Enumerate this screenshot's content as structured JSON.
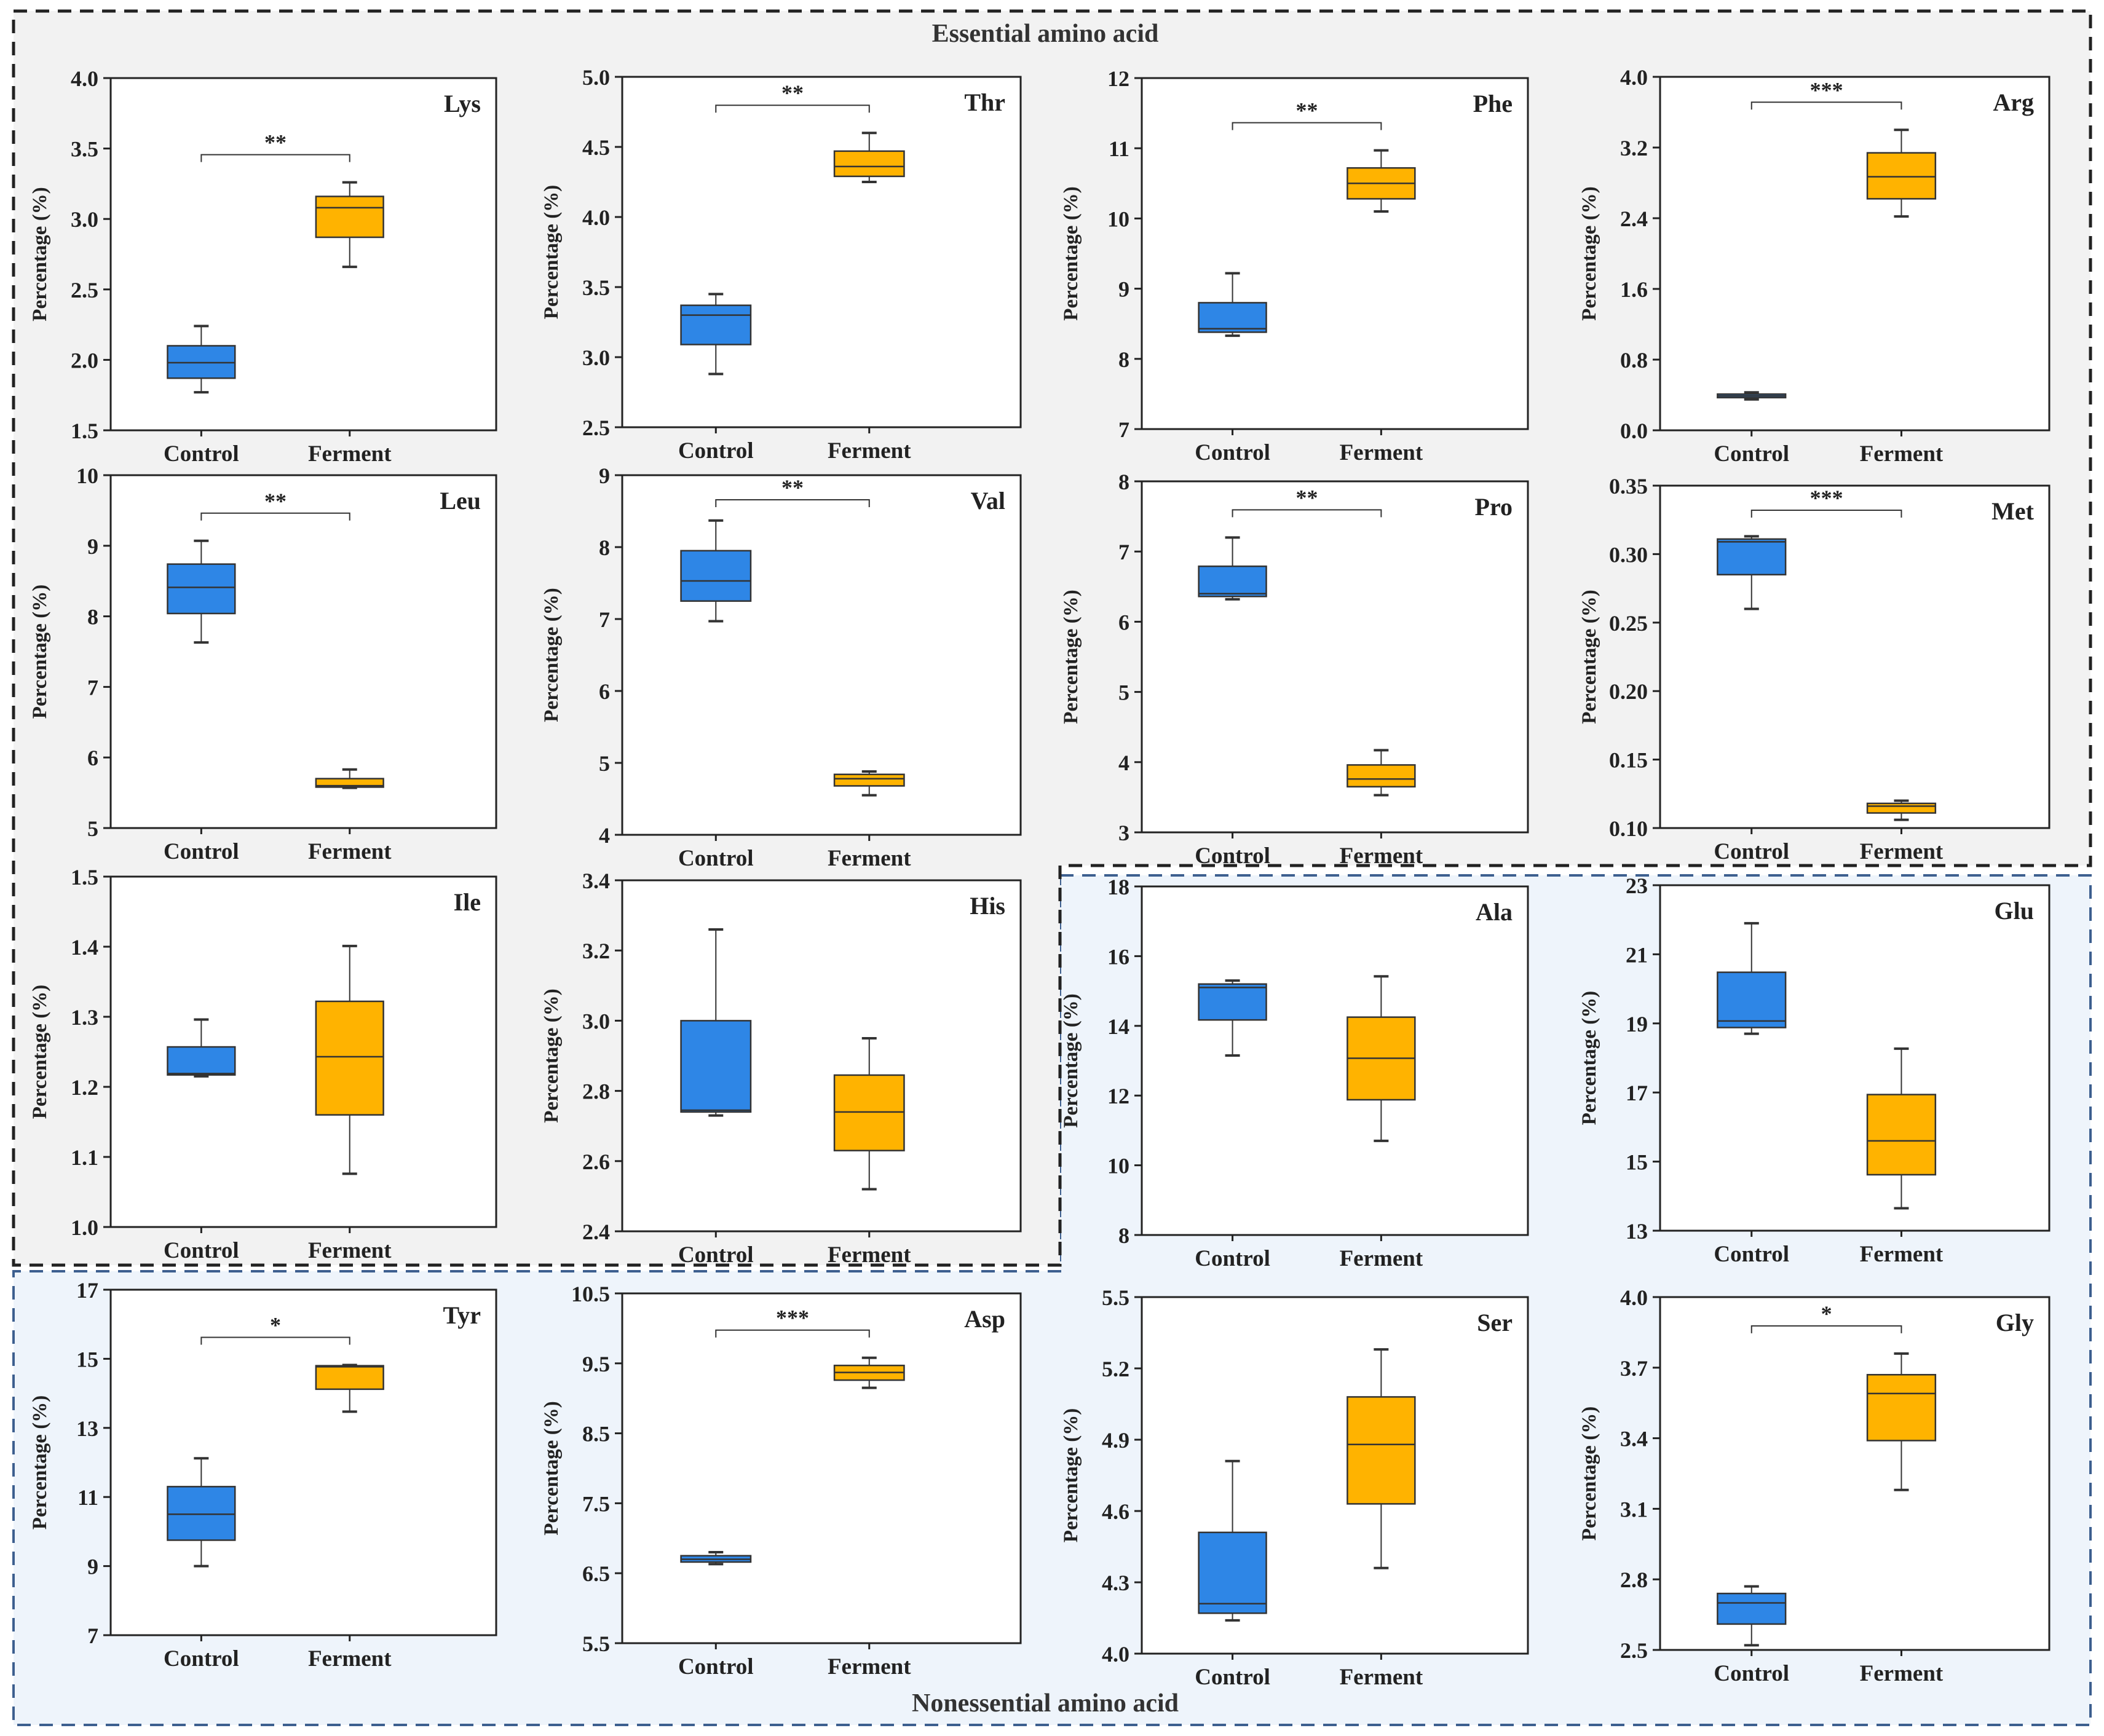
{
  "figure": {
    "essential_label": "Essential amino acid",
    "nonessential_label": "Nonessential amino acid"
  },
  "colors": {
    "control": "#2e86e6",
    "ferment": "#ffb300",
    "essential_bg": "#f2f2f2",
    "nonessential_bg": "#eef4fb",
    "essential_border": "#222222",
    "nonessential_border": "#3d5f8f"
  },
  "chart_data": [
    {
      "type": "box",
      "name": "Lys",
      "region": "essential",
      "ylabel": "Percentage (%)",
      "categories": [
        "Control",
        "Ferment"
      ],
      "ylim": [
        1.5,
        4.0
      ],
      "yticks": [
        "1.5",
        "2.0",
        "2.5",
        "3.0",
        "3.5",
        "4.0"
      ],
      "sig": "**",
      "boxes": [
        {
          "min": 1.77,
          "q1": 1.87,
          "median": 1.98,
          "q3": 2.1,
          "max": 2.24
        },
        {
          "min": 2.66,
          "q1": 2.87,
          "median": 3.08,
          "q3": 3.16,
          "max": 3.26
        }
      ]
    },
    {
      "type": "box",
      "name": "Thr",
      "region": "essential",
      "ylabel": "Percentage (%)",
      "categories": [
        "Control",
        "Ferment"
      ],
      "ylim": [
        2.5,
        5.0
      ],
      "yticks": [
        "2.5",
        "3.0",
        "3.5",
        "4.0",
        "4.5",
        "5.0"
      ],
      "sig": "**",
      "boxes": [
        {
          "min": 2.88,
          "q1": 3.09,
          "median": 3.3,
          "q3": 3.37,
          "max": 3.45
        },
        {
          "min": 4.25,
          "q1": 4.29,
          "median": 4.36,
          "q3": 4.47,
          "max": 4.6
        }
      ]
    },
    {
      "type": "box",
      "name": "Phe",
      "region": "essential",
      "ylabel": "Percentage (%)",
      "categories": [
        "Control",
        "Ferment"
      ],
      "ylim": [
        7,
        12
      ],
      "yticks": [
        "7",
        "8",
        "9",
        "10",
        "11",
        "12"
      ],
      "sig": "**",
      "boxes": [
        {
          "min": 8.33,
          "q1": 8.38,
          "median": 8.43,
          "q3": 8.8,
          "max": 9.22
        },
        {
          "min": 10.1,
          "q1": 10.28,
          "median": 10.5,
          "q3": 10.72,
          "max": 10.97
        }
      ]
    },
    {
      "type": "box",
      "name": "Arg",
      "region": "essential",
      "ylabel": "Percentage (%)",
      "categories": [
        "Control",
        "Ferment"
      ],
      "ylim": [
        0.0,
        4.0
      ],
      "yticks": [
        "0.0",
        "0.8",
        "1.6",
        "2.4",
        "3.2",
        "4.0"
      ],
      "sig": "***",
      "boxes": [
        {
          "min": 0.35,
          "q1": 0.37,
          "median": 0.39,
          "q3": 0.41,
          "max": 0.43
        },
        {
          "min": 2.42,
          "q1": 2.62,
          "median": 2.87,
          "q3": 3.14,
          "max": 3.4
        }
      ]
    },
    {
      "type": "box",
      "name": "Leu",
      "region": "essential",
      "ylabel": "Percentage (%)",
      "categories": [
        "Control",
        "Ferment"
      ],
      "ylim": [
        5,
        10
      ],
      "yticks": [
        "5",
        "6",
        "7",
        "8",
        "9",
        "10"
      ],
      "sig": "**",
      "boxes": [
        {
          "min": 7.63,
          "q1": 8.04,
          "median": 8.41,
          "q3": 8.74,
          "max": 9.07
        },
        {
          "min": 5.57,
          "q1": 5.58,
          "median": 5.6,
          "q3": 5.7,
          "max": 5.83
        }
      ]
    },
    {
      "type": "box",
      "name": "Val",
      "region": "essential",
      "ylabel": "Percentage (%)",
      "categories": [
        "Control",
        "Ferment"
      ],
      "ylim": [
        4,
        9
      ],
      "yticks": [
        "4",
        "5",
        "6",
        "7",
        "8",
        "9"
      ],
      "sig": "**",
      "boxes": [
        {
          "min": 6.97,
          "q1": 7.25,
          "median": 7.53,
          "q3": 7.95,
          "max": 8.37
        },
        {
          "min": 4.55,
          "q1": 4.68,
          "median": 4.78,
          "q3": 4.84,
          "max": 4.88
        }
      ]
    },
    {
      "type": "box",
      "name": "Pro",
      "region": "essential",
      "ylabel": "Percentage (%)",
      "categories": [
        "Control",
        "Ferment"
      ],
      "ylim": [
        3,
        8
      ],
      "yticks": [
        "3",
        "4",
        "5",
        "6",
        "7",
        "8"
      ],
      "sig": "**",
      "boxes": [
        {
          "min": 6.32,
          "q1": 6.36,
          "median": 6.4,
          "q3": 6.79,
          "max": 7.2
        },
        {
          "min": 3.53,
          "q1": 3.65,
          "median": 3.76,
          "q3": 3.96,
          "max": 4.17
        }
      ]
    },
    {
      "type": "box",
      "name": "Met",
      "region": "essential",
      "ylabel": "Percentage (%)",
      "categories": [
        "Control",
        "Ferment"
      ],
      "ylim": [
        0.1,
        0.35
      ],
      "yticks": [
        "0.10",
        "0.15",
        "0.20",
        "0.25",
        "0.30",
        "0.35"
      ],
      "sig": "***",
      "boxes": [
        {
          "min": 0.26,
          "q1": 0.285,
          "median": 0.309,
          "q3": 0.311,
          "max": 0.313
        },
        {
          "min": 0.106,
          "q1": 0.111,
          "median": 0.116,
          "q3": 0.118,
          "max": 0.12
        }
      ]
    },
    {
      "type": "box",
      "name": "Ile",
      "region": "essential",
      "ylabel": "Percentage (%)",
      "categories": [
        "Control",
        "Ferment"
      ],
      "ylim": [
        1.0,
        1.5
      ],
      "yticks": [
        "1.0",
        "1.1",
        "1.2",
        "1.3",
        "1.4",
        "1.5"
      ],
      "sig": "",
      "boxes": [
        {
          "min": 1.215,
          "q1": 1.217,
          "median": 1.219,
          "q3": 1.257,
          "max": 1.296
        },
        {
          "min": 1.076,
          "q1": 1.16,
          "median": 1.243,
          "q3": 1.322,
          "max": 1.401
        }
      ]
    },
    {
      "type": "box",
      "name": "His",
      "region": "essential",
      "ylabel": "Percentage (%)",
      "categories": [
        "Control",
        "Ferment"
      ],
      "ylim": [
        2.4,
        3.4
      ],
      "yticks": [
        "2.4",
        "2.6",
        "2.8",
        "3.0",
        "3.2",
        "3.4"
      ],
      "sig": "",
      "boxes": [
        {
          "min": 2.73,
          "q1": 2.74,
          "median": 2.745,
          "q3": 3.0,
          "max": 3.26
        },
        {
          "min": 2.52,
          "q1": 2.63,
          "median": 2.74,
          "q3": 2.845,
          "max": 2.95
        }
      ]
    },
    {
      "type": "box",
      "name": "Ala",
      "region": "nonessential",
      "ylabel": "Percentage (%)",
      "categories": [
        "Control",
        "Ferment"
      ],
      "ylim": [
        8,
        18
      ],
      "yticks": [
        "8",
        "10",
        "12",
        "14",
        "16",
        "18"
      ],
      "sig": "",
      "boxes": [
        {
          "min": 13.15,
          "q1": 14.17,
          "median": 15.1,
          "q3": 15.2,
          "max": 15.3
        },
        {
          "min": 10.7,
          "q1": 11.88,
          "median": 13.07,
          "q3": 14.25,
          "max": 15.42
        }
      ]
    },
    {
      "type": "box",
      "name": "Glu",
      "region": "nonessential",
      "ylabel": "Percentage (%)",
      "categories": [
        "Control",
        "Ferment"
      ],
      "ylim": [
        13,
        23
      ],
      "yticks": [
        "13",
        "15",
        "17",
        "19",
        "21",
        "23"
      ],
      "sig": "",
      "boxes": [
        {
          "min": 18.7,
          "q1": 18.88,
          "median": 19.07,
          "q3": 20.48,
          "max": 21.9
        },
        {
          "min": 13.65,
          "q1": 14.62,
          "median": 15.6,
          "q3": 16.94,
          "max": 18.27
        }
      ]
    },
    {
      "type": "box",
      "name": "Tyr",
      "region": "nonessential",
      "ylabel": "Percentage (%)",
      "categories": [
        "Control",
        "Ferment"
      ],
      "ylim": [
        7,
        17
      ],
      "yticks": [
        "7",
        "9",
        "11",
        "13",
        "15",
        "17"
      ],
      "sig": "*",
      "boxes": [
        {
          "min": 9.0,
          "q1": 9.75,
          "median": 10.5,
          "q3": 11.3,
          "max": 12.12
        },
        {
          "min": 13.47,
          "q1": 14.12,
          "median": 14.77,
          "q3": 14.8,
          "max": 14.82
        }
      ]
    },
    {
      "type": "box",
      "name": "Asp",
      "region": "nonessential",
      "ylabel": "Percentage (%)",
      "categories": [
        "Control",
        "Ferment"
      ],
      "ylim": [
        5.5,
        10.5
      ],
      "yticks": [
        "5.5",
        "6.5",
        "7.5",
        "8.5",
        "9.5",
        "10.5"
      ],
      "sig": "***",
      "boxes": [
        {
          "min": 6.63,
          "q1": 6.66,
          "median": 6.7,
          "q3": 6.75,
          "max": 6.8
        },
        {
          "min": 9.15,
          "q1": 9.26,
          "median": 9.37,
          "q3": 9.47,
          "max": 9.58
        }
      ]
    },
    {
      "type": "box",
      "name": "Ser",
      "region": "nonessential",
      "ylabel": "Percentage (%)",
      "categories": [
        "Control",
        "Ferment"
      ],
      "ylim": [
        4.0,
        5.5
      ],
      "yticks": [
        "4.0",
        "4.3",
        "4.6",
        "4.9",
        "5.2",
        "5.5"
      ],
      "sig": "",
      "boxes": [
        {
          "min": 4.14,
          "q1": 4.17,
          "median": 4.21,
          "q3": 4.51,
          "max": 4.81
        },
        {
          "min": 4.36,
          "q1": 4.63,
          "median": 4.88,
          "q3": 5.08,
          "max": 5.28
        }
      ]
    },
    {
      "type": "box",
      "name": "Gly",
      "region": "nonessential",
      "ylabel": "Percentage (%)",
      "categories": [
        "Control",
        "Ferment"
      ],
      "ylim": [
        2.5,
        4.0
      ],
      "yticks": [
        "2.5",
        "2.8",
        "3.1",
        "3.4",
        "3.7",
        "4.0"
      ],
      "sig": "*",
      "boxes": [
        {
          "min": 2.52,
          "q1": 2.61,
          "median": 2.7,
          "q3": 2.74,
          "max": 2.77
        },
        {
          "min": 3.18,
          "q1": 3.39,
          "median": 3.59,
          "q3": 3.67,
          "max": 3.76
        }
      ]
    }
  ]
}
